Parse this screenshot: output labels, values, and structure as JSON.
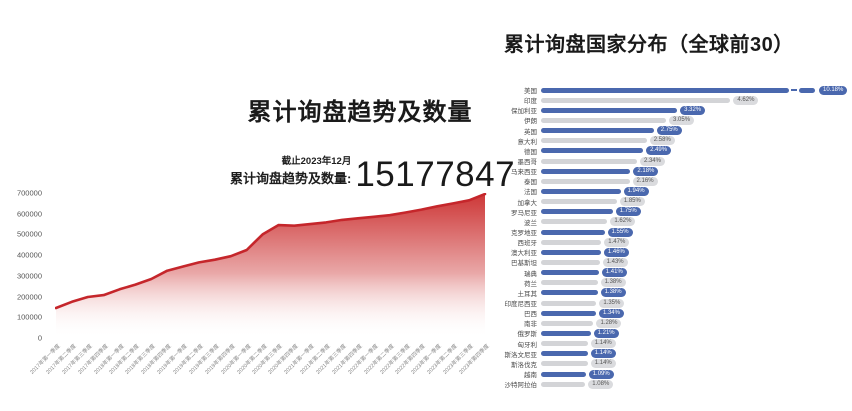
{
  "left_panel": {
    "title": "累计询盘趋势及数量",
    "stat": {
      "as_of": "截止2023年12月",
      "label": "累计询盘趋势及数量:",
      "value": "15177847"
    }
  },
  "right_panel": {
    "title": "累计询盘国家分布（全球前30）"
  },
  "colors": {
    "area_line": "#c5262b",
    "area_fill_top": "#cb2f2f",
    "bar_blue": "#4a68ae",
    "bar_gray": "#d3d4d7",
    "pill_gray_bg": "#dadbde"
  },
  "chart_data": [
    {
      "type": "area",
      "title": "累计询盘趋势及数量",
      "xlabel": "",
      "ylabel": "",
      "ylim": [
        0,
        700000
      ],
      "ytick_step": 100000,
      "legend": "none",
      "grid": false,
      "categories": [
        "2017年第一季度",
        "2017年第二季度",
        "2017年第三季度",
        "2017年第四季度",
        "2018年第一季度",
        "2018年第二季度",
        "2018年第三季度",
        "2018年第四季度",
        "2019年第一季度",
        "2019年第二季度",
        "2019年第三季度",
        "2019年第四季度",
        "2020年第一季度",
        "2020年第二季度",
        "2020年第三季度",
        "2020年第四季度",
        "2021年第一季度",
        "2021年第二季度",
        "2021年第三季度",
        "2021年第四季度",
        "2022年第一季度",
        "2022年第二季度",
        "2022年第三季度",
        "2022年第四季度",
        "2023年第一季度",
        "2023年第二季度",
        "2023年第三季度",
        "2023年第四季度"
      ],
      "values": [
        145000,
        175000,
        198000,
        207000,
        235000,
        258000,
        285000,
        325000,
        345000,
        365000,
        378000,
        395000,
        425000,
        500000,
        545000,
        542000,
        550000,
        558000,
        570000,
        578000,
        585000,
        593000,
        606000,
        620000,
        636000,
        650000,
        665000,
        695000
      ]
    },
    {
      "type": "bar",
      "orientation": "horizontal",
      "title": "累计询盘国家分布（全球前30）",
      "xlabel": "",
      "ylabel": "",
      "legend": "none",
      "axis_break_row": 0,
      "categories": [
        "美国",
        "印度",
        "保加利亚",
        "伊朗",
        "英国",
        "意大利",
        "德国",
        "墨西哥",
        "马来西亚",
        "泰国",
        "法国",
        "加拿大",
        "罗马尼亚",
        "波兰",
        "克罗地亚",
        "西班牙",
        "澳大利亚",
        "巴基斯坦",
        "瑞典",
        "荷兰",
        "土耳其",
        "印度尼西亚",
        "巴西",
        "南非",
        "俄罗斯",
        "匈牙利",
        "斯洛文尼亚",
        "斯洛伐克",
        "越南",
        "沙特阿拉伯"
      ],
      "values": [
        10.18,
        4.62,
        3.32,
        3.05,
        2.75,
        2.58,
        2.49,
        2.34,
        2.18,
        2.16,
        1.94,
        1.85,
        1.75,
        1.62,
        1.55,
        1.47,
        1.46,
        1.43,
        1.41,
        1.38,
        1.38,
        1.35,
        1.34,
        1.28,
        1.21,
        1.14,
        1.14,
        1.14,
        1.09,
        1.08
      ],
      "labels": [
        "10.18%",
        "4.62%",
        "3.32%",
        "3.05%",
        "2.75%",
        "2.58%",
        "2.49%",
        "2.34%",
        "2.18%",
        "2.16%",
        "1.94%",
        "1.85%",
        "1.75%",
        "1.62%",
        "1.55%",
        "1.47%",
        "1.46%",
        "1.43%",
        "1.41%",
        "1.38%",
        "1.38%",
        "1.35%",
        "1.34%",
        "1.28%",
        "1.21%",
        "1.14%",
        "1.14%",
        "1.14%",
        "1.09%",
        "1.08%"
      ]
    }
  ]
}
